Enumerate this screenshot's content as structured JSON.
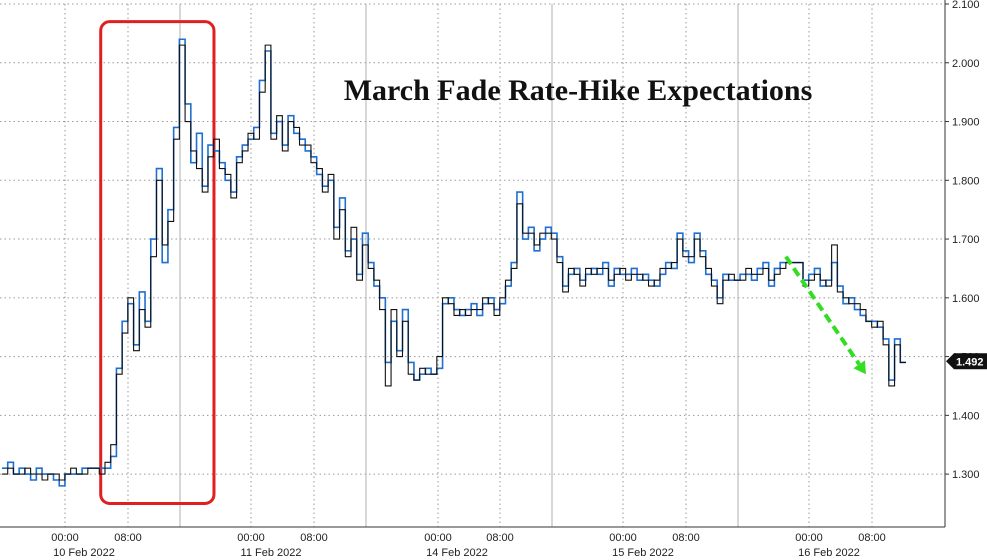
{
  "chart_data": {
    "type": "line",
    "title": "March Fade Rate-Hike Expectations",
    "xlabel": "",
    "ylabel": "",
    "ylim": [
      1.21,
      2.1
    ],
    "yticks": [
      "2.100",
      "2.000",
      "1.900",
      "1.800",
      "1.700",
      "1.600",
      "1.500",
      "1.400",
      "1.300"
    ],
    "y_tick_values": [
      2.1,
      2.0,
      1.9,
      1.8,
      1.7,
      1.6,
      1.5,
      1.4,
      1.3
    ],
    "x_time_labels": [
      "00:00",
      "08:00",
      "00:00",
      "08:00",
      "00:00",
      "08:00",
      "00:00",
      "08:00",
      "00:00",
      "08:00"
    ],
    "x_date_labels": [
      "10 Feb 2022",
      "11 Feb 2022",
      "14 Feb 2022",
      "15 Feb 2022",
      "16 Feb 2022"
    ],
    "last_value": "1.492",
    "grid": true,
    "series": [
      {
        "color": "#1f6fd1",
        "values": [
          1.31,
          1.32,
          1.3,
          1.31,
          1.3,
          1.29,
          1.31,
          1.3,
          1.3,
          1.29,
          1.28,
          1.3,
          1.3,
          1.3,
          1.31,
          1.31,
          1.31,
          1.31,
          1.31,
          1.33,
          1.48,
          1.56,
          1.59,
          1.52,
          1.61,
          1.56,
          1.7,
          1.82,
          1.66,
          1.75,
          1.89,
          2.04,
          1.93,
          1.83,
          1.88,
          1.79,
          1.86,
          1.85,
          1.83,
          1.8,
          1.78,
          1.84,
          1.86,
          1.87,
          1.89,
          1.97,
          2.02,
          1.88,
          1.9,
          1.86,
          1.91,
          1.88,
          1.87,
          1.85,
          1.84,
          1.81,
          1.79,
          1.8,
          1.72,
          1.77,
          1.68,
          1.7,
          1.64,
          1.71,
          1.66,
          1.62,
          1.6,
          1.49,
          1.56,
          1.51,
          1.58,
          1.49,
          1.46,
          1.47,
          1.48,
          1.47,
          1.48,
          1.59,
          1.6,
          1.58,
          1.57,
          1.58,
          1.59,
          1.57,
          1.59,
          1.6,
          1.58,
          1.59,
          1.62,
          1.66,
          1.78,
          1.7,
          1.72,
          1.68,
          1.7,
          1.72,
          1.71,
          1.67,
          1.62,
          1.64,
          1.65,
          1.63,
          1.64,
          1.65,
          1.64,
          1.66,
          1.62,
          1.65,
          1.64,
          1.64,
          1.65,
          1.63,
          1.64,
          1.63,
          1.62,
          1.64,
          1.66,
          1.65,
          1.71,
          1.68,
          1.66,
          1.71,
          1.68,
          1.64,
          1.63,
          1.6,
          1.64,
          1.63,
          1.63,
          1.64,
          1.64,
          1.63,
          1.65,
          1.66,
          1.62,
          1.65,
          1.66,
          1.66,
          1.66,
          1.66,
          1.63,
          1.64,
          1.65,
          1.62,
          1.63,
          1.66,
          1.62,
          1.59,
          1.6,
          1.58,
          1.57,
          1.56,
          1.56,
          1.55,
          1.53,
          1.46,
          1.53,
          1.49,
          1.49
        ]
      },
      {
        "color": "#111111",
        "values": [
          1.3,
          1.31,
          1.3,
          1.3,
          1.31,
          1.3,
          1.3,
          1.29,
          1.3,
          1.3,
          1.29,
          1.3,
          1.31,
          1.3,
          1.3,
          1.31,
          1.31,
          1.3,
          1.32,
          1.35,
          1.47,
          1.54,
          1.6,
          1.51,
          1.58,
          1.55,
          1.67,
          1.8,
          1.69,
          1.73,
          1.87,
          2.03,
          1.9,
          1.85,
          1.82,
          1.78,
          1.84,
          1.87,
          1.82,
          1.81,
          1.77,
          1.83,
          1.85,
          1.88,
          1.87,
          1.95,
          2.03,
          1.87,
          1.91,
          1.85,
          1.9,
          1.89,
          1.86,
          1.86,
          1.83,
          1.82,
          1.78,
          1.81,
          1.7,
          1.75,
          1.67,
          1.72,
          1.63,
          1.69,
          1.65,
          1.63,
          1.58,
          1.45,
          1.58,
          1.5,
          1.56,
          1.47,
          1.46,
          1.48,
          1.47,
          1.47,
          1.5,
          1.6,
          1.59,
          1.57,
          1.58,
          1.57,
          1.58,
          1.58,
          1.6,
          1.59,
          1.57,
          1.6,
          1.63,
          1.65,
          1.76,
          1.71,
          1.71,
          1.69,
          1.71,
          1.71,
          1.7,
          1.66,
          1.61,
          1.65,
          1.64,
          1.62,
          1.65,
          1.64,
          1.65,
          1.65,
          1.63,
          1.64,
          1.65,
          1.63,
          1.64,
          1.64,
          1.63,
          1.62,
          1.63,
          1.65,
          1.65,
          1.66,
          1.7,
          1.67,
          1.67,
          1.7,
          1.67,
          1.65,
          1.62,
          1.59,
          1.63,
          1.64,
          1.63,
          1.63,
          1.65,
          1.64,
          1.64,
          1.65,
          1.63,
          1.64,
          1.65,
          1.66,
          1.66,
          1.66,
          1.62,
          1.63,
          1.64,
          1.63,
          1.62,
          1.69,
          1.61,
          1.6,
          1.59,
          1.59,
          1.58,
          1.56,
          1.55,
          1.56,
          1.52,
          1.45,
          1.52,
          1.49,
          1.49
        ]
      }
    ],
    "annotations": {
      "highlight_box_color": "#e02020",
      "highlight_box_x_range": [
        19,
        36
      ],
      "highlight_box_y_range": [
        1.25,
        2.07
      ],
      "arrow_color": "#33dd22",
      "arrow_from": {
        "x": 137,
        "y": 1.67
      },
      "arrow_to": {
        "x": 151,
        "y": 1.47
      }
    }
  }
}
